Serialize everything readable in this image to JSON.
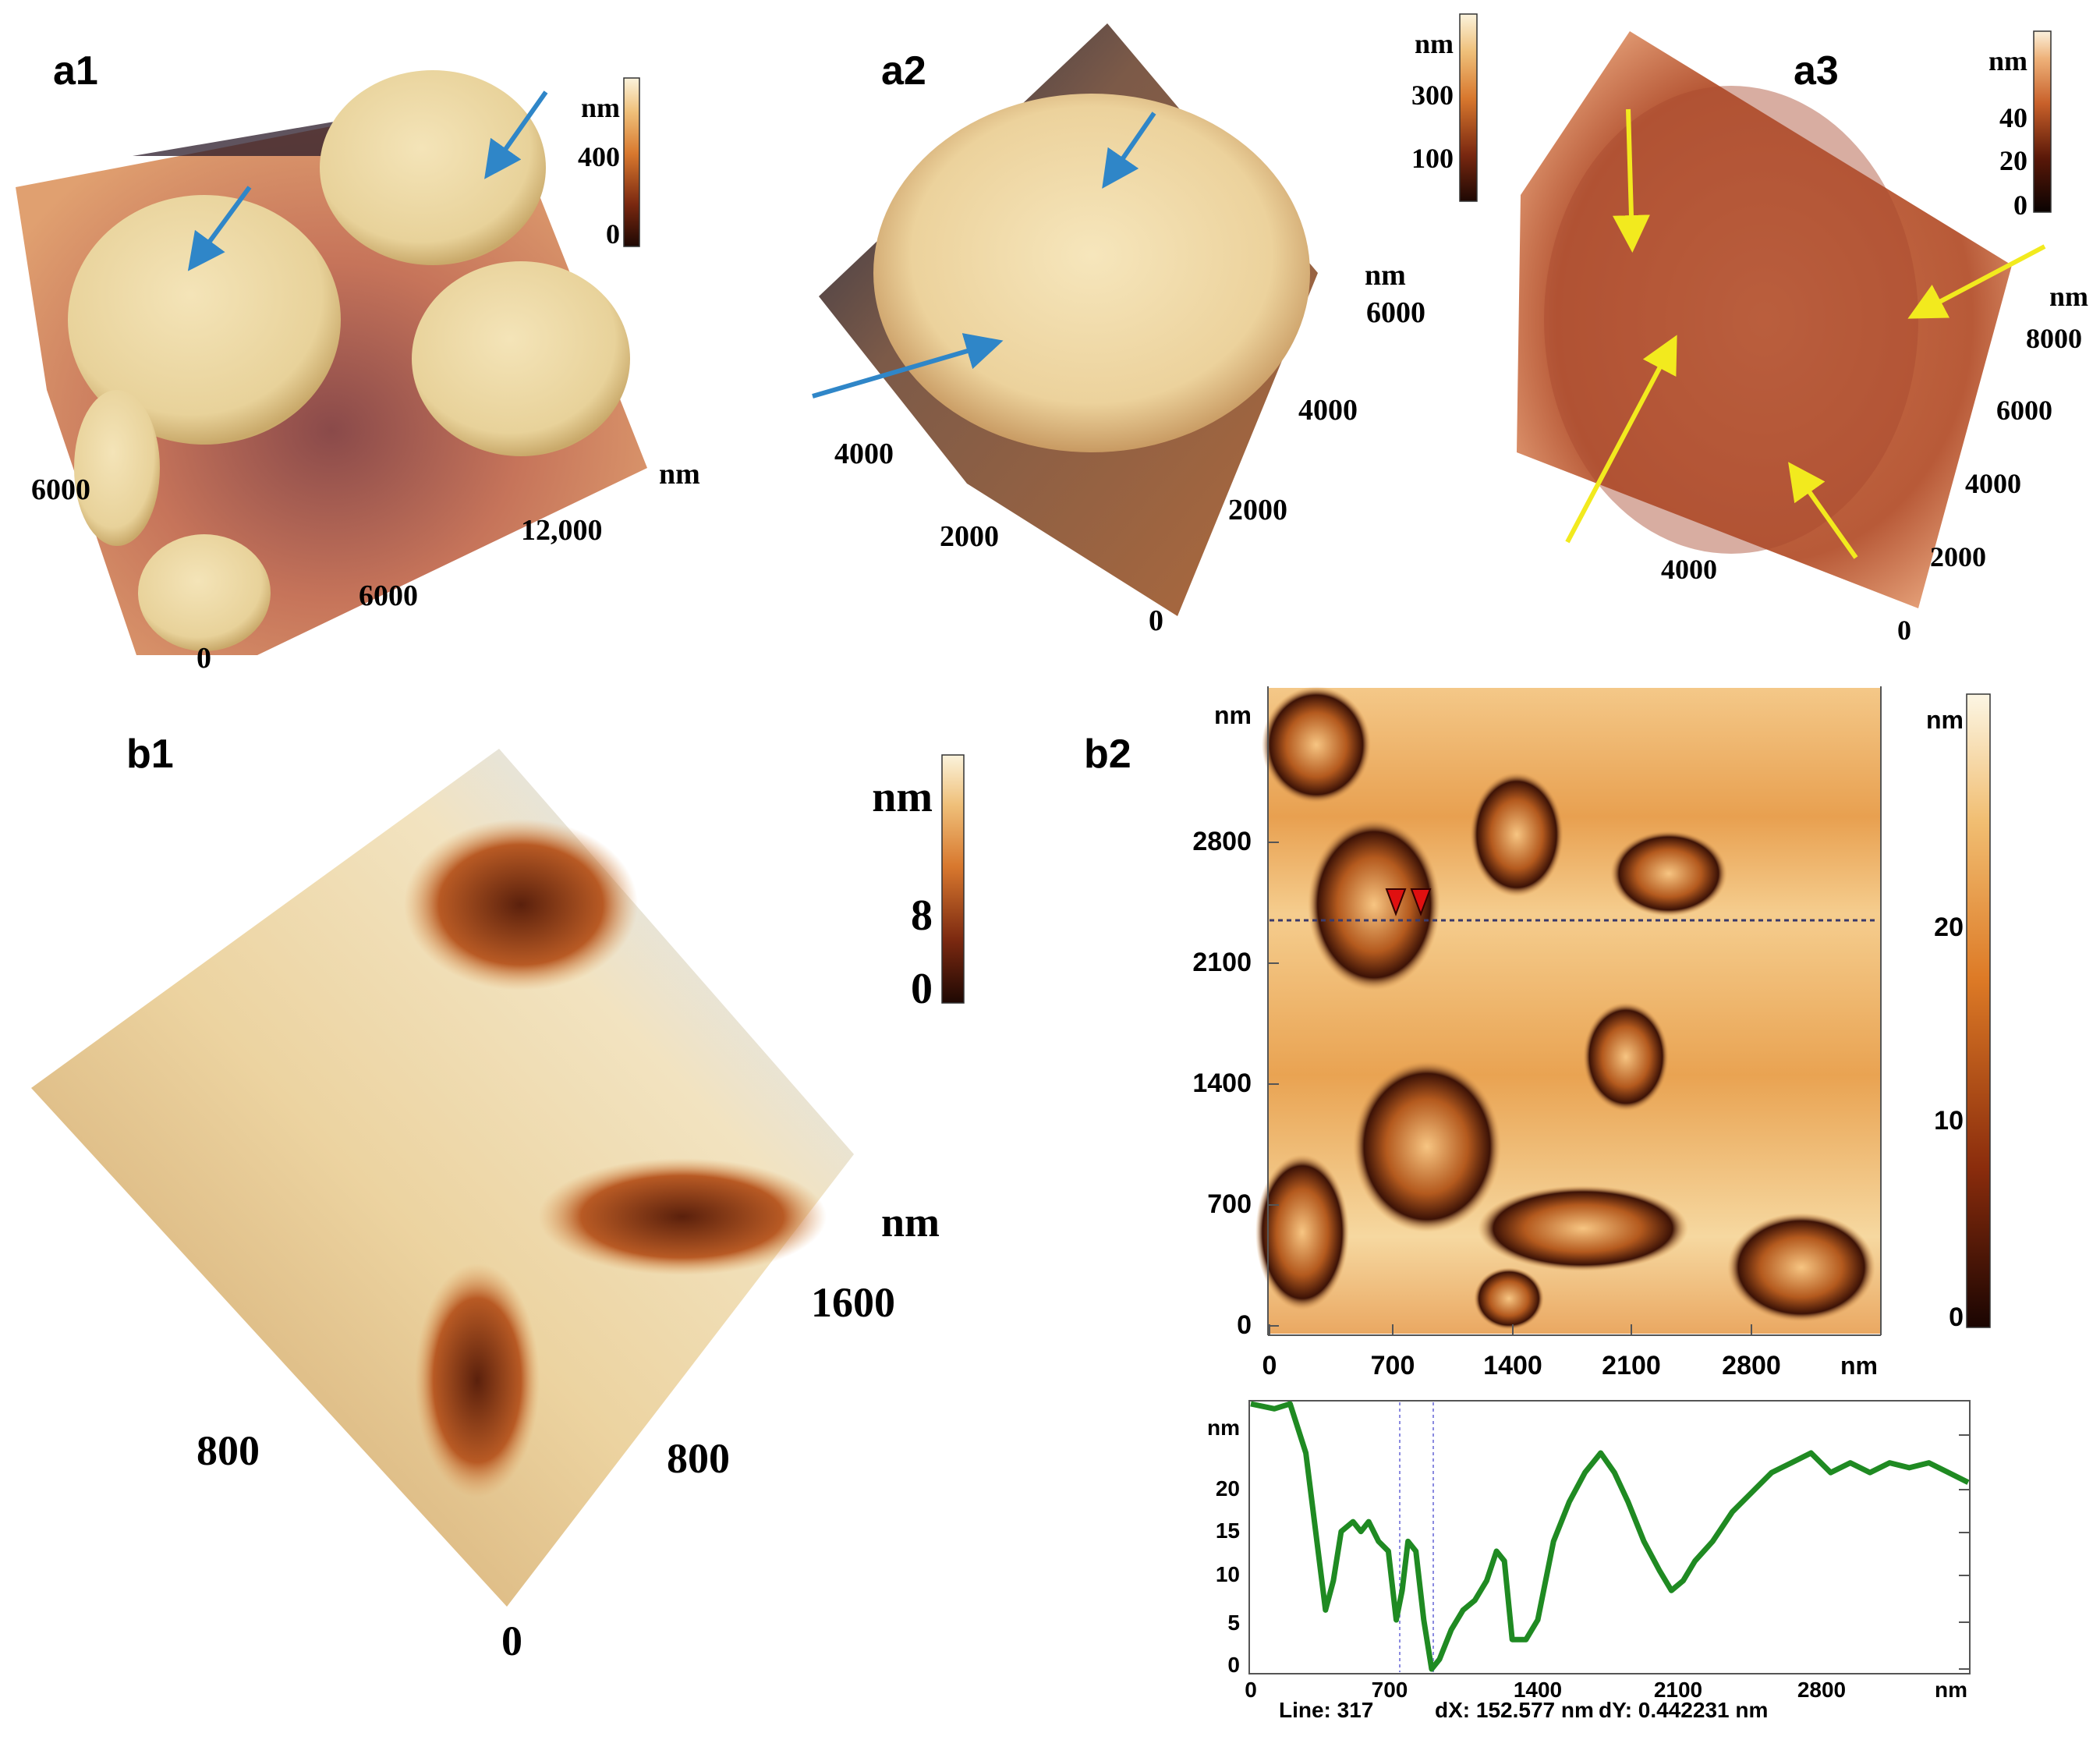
{
  "panels": {
    "a1": {
      "label": "a1",
      "colorbar": {
        "unit": "nm",
        "ticks": [
          "400",
          "0"
        ]
      },
      "axis_labels": [
        "6000",
        "0",
        "6000",
        "12,000",
        "nm"
      ]
    },
    "a2": {
      "label": "a2",
      "colorbar": {
        "unit": "nm",
        "ticks": [
          "300",
          "100"
        ]
      },
      "axis_labels": [
        "4000",
        "2000",
        "nm",
        "6000",
        "4000",
        "2000",
        "0"
      ]
    },
    "a3": {
      "label": "a3",
      "colorbar": {
        "unit": "nm",
        "ticks": [
          "40",
          "20",
          "0"
        ]
      },
      "axis_labels": [
        "nm",
        "8000",
        "6000",
        "4000",
        "2000",
        "4000",
        "0"
      ]
    },
    "b1": {
      "label": "b1",
      "colorbar": {
        "unit": "nm",
        "ticks": [
          "8",
          "0"
        ]
      },
      "axis_labels": [
        "nm",
        "1600",
        "800",
        "800",
        "0"
      ]
    },
    "b2": {
      "label": "b2",
      "image": {
        "y_unit": "nm",
        "x_unit": "nm",
        "y_ticks": [
          "2800",
          "2100",
          "1400",
          "700",
          "0"
        ],
        "x_ticks": [
          "0",
          "700",
          "1400",
          "2100",
          "2800"
        ]
      },
      "colorbar": {
        "unit": "nm",
        "ticks": [
          "20",
          "10",
          "0"
        ]
      },
      "profile": {
        "y_unit": "nm",
        "y_ticks": [
          "20",
          "15",
          "10",
          "5",
          "0"
        ],
        "x_ticks": [
          "0",
          "700",
          "1400",
          "2100",
          "2800"
        ],
        "x_unit": "nm",
        "footer": {
          "line": "Line:  317",
          "dx": "dX: 152.577 nm",
          "dy": "dY: 0.442231 nm"
        }
      }
    }
  },
  "colors": {
    "arrow_blue": "#2f86c8",
    "arrow_yellow": "#f2ea1e",
    "profile_green": "#1f8a22",
    "cursor_red": "#e01010",
    "tan_light": "#f1dcaa",
    "orange_mid": "#e3963e",
    "brown_dark": "#3a1408"
  },
  "profile_data": {
    "x_range": [
      0,
      3650
    ],
    "y_range": [
      0,
      27
    ],
    "points": [
      [
        0,
        27
      ],
      [
        120,
        26.5
      ],
      [
        200,
        27
      ],
      [
        280,
        22
      ],
      [
        330,
        14
      ],
      [
        380,
        6
      ],
      [
        420,
        9
      ],
      [
        460,
        14
      ],
      [
        520,
        15
      ],
      [
        560,
        14
      ],
      [
        600,
        15
      ],
      [
        650,
        13
      ],
      [
        700,
        12
      ],
      [
        740,
        5
      ],
      [
        770,
        8
      ],
      [
        800,
        13
      ],
      [
        840,
        12
      ],
      [
        880,
        5
      ],
      [
        920,
        0
      ],
      [
        960,
        1
      ],
      [
        1020,
        4
      ],
      [
        1080,
        6
      ],
      [
        1140,
        7
      ],
      [
        1200,
        9
      ],
      [
        1250,
        12
      ],
      [
        1290,
        11
      ],
      [
        1330,
        3
      ],
      [
        1400,
        3
      ],
      [
        1460,
        5
      ],
      [
        1540,
        13
      ],
      [
        1620,
        17
      ],
      [
        1700,
        20
      ],
      [
        1780,
        22
      ],
      [
        1850,
        20
      ],
      [
        1920,
        17
      ],
      [
        2000,
        13
      ],
      [
        2080,
        10
      ],
      [
        2140,
        8
      ],
      [
        2200,
        9
      ],
      [
        2260,
        11
      ],
      [
        2350,
        13
      ],
      [
        2450,
        16
      ],
      [
        2550,
        18
      ],
      [
        2650,
        20
      ],
      [
        2750,
        21
      ],
      [
        2850,
        22
      ],
      [
        2950,
        20
      ],
      [
        3050,
        21
      ],
      [
        3150,
        20
      ],
      [
        3250,
        21
      ],
      [
        3350,
        20.5
      ],
      [
        3450,
        21
      ],
      [
        3550,
        20
      ],
      [
        3650,
        19
      ]
    ]
  }
}
